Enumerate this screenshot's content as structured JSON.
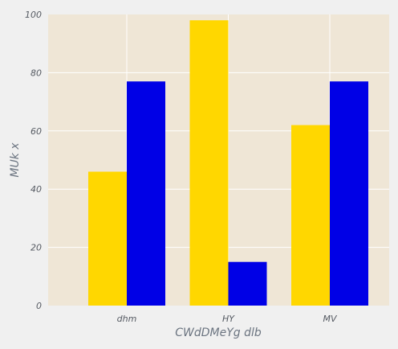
{
  "chart_data": {
    "type": "bar",
    "categories": [
      "dhm",
      "HY",
      "MV"
    ],
    "series": [
      {
        "values": [
          46,
          98,
          62
        ],
        "color": "#ffd700"
      },
      {
        "values": [
          77,
          15,
          77
        ],
        "color": "#0000e6"
      }
    ],
    "xlabel": "CWdDMeYg dlb",
    "ylabel": "MUk x",
    "ylim": [
      0,
      100
    ],
    "yticks": [
      0,
      20,
      40,
      60,
      80,
      100
    ],
    "grid": true,
    "plot_background": "#efe6d6",
    "page_background": "#f0f0f0"
  }
}
